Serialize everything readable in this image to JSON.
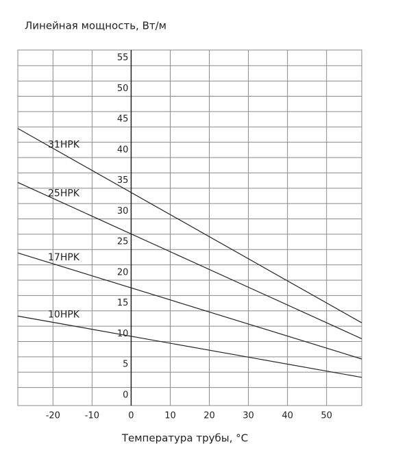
{
  "chart_data": {
    "type": "line",
    "title": "Линейная мощность, Вт/м",
    "x_label": "Температура трубы, °C",
    "series": [
      {
        "name": "31HPK",
        "color": "#222222",
        "x": [
          -29,
          59
        ],
        "values": [
          43.5,
          11.8
        ]
      },
      {
        "name": "25HPK",
        "color": "#222222",
        "x": [
          -29,
          59
        ],
        "values": [
          34.7,
          9.2
        ]
      },
      {
        "name": "17HPK",
        "color": "#222222",
        "x": [
          -29,
          59
        ],
        "values": [
          23.2,
          5.9
        ]
      },
      {
        "name": "10HPK",
        "color": "#222222",
        "x": [
          -29,
          59
        ],
        "values": [
          12.9,
          2.9
        ]
      }
    ],
    "xlim": [
      -29,
      59
    ],
    "ylim": [
      -1.7,
      56.3
    ],
    "xticks": [
      -20,
      -10,
      0,
      10,
      20,
      30,
      40,
      50
    ],
    "yticks": [
      0,
      5,
      10,
      15,
      20,
      25,
      30,
      35,
      40,
      45,
      50,
      55
    ],
    "ygrid": [
      1.25,
      3.75,
      6.25,
      8.75,
      11.25,
      13.75,
      16.25,
      18.75,
      21.25,
      23.75,
      26.25,
      28.75,
      31.25,
      33.75,
      36.25,
      38.75,
      41.25,
      43.75,
      46.25,
      48.75,
      51.25,
      53.75
    ],
    "grid": true
  }
}
